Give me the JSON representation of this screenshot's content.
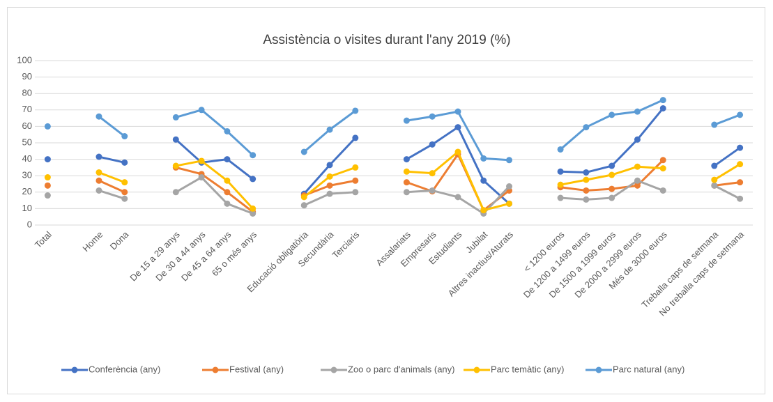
{
  "chart_data": {
    "type": "line",
    "title": "Assistència o visites durant l'any 2019 (%)",
    "categories": [
      "Total",
      null,
      "Home",
      "Dona",
      null,
      "De 15 a 29 anys",
      "De 30 a 44 anys",
      "De 45 a 64 anys",
      "65 o més anys",
      null,
      "Educació obligatòria",
      "Secundària",
      "Terciaris",
      null,
      "Assalariats",
      "Empresaris",
      "Estudiants",
      "Jubilat",
      "Altres inactius/Aturats",
      null,
      "< 1200 euros",
      "De 1200 a 1499 euros",
      "De 1500 a 1999 euros",
      "De 2000 a 2999 euros",
      "Més de 3000 euros",
      null,
      "Treballa caps de setmana",
      "No treballa caps de setmana"
    ],
    "series": [
      {
        "name": "Conferència (any)",
        "color": "#4472c4",
        "values": [
          40,
          null,
          41.5,
          38,
          null,
          52,
          38,
          40,
          28,
          null,
          19,
          36.5,
          53,
          null,
          40,
          49,
          59.5,
          27,
          13,
          null,
          32.5,
          32,
          36,
          52,
          71,
          null,
          36,
          47
        ]
      },
      {
        "name": "Festival (any)",
        "color": "#ed7d31",
        "values": [
          24,
          null,
          27,
          20,
          null,
          35,
          31,
          20,
          8,
          null,
          18,
          24,
          27,
          null,
          26,
          20.5,
          43,
          9,
          21,
          null,
          23,
          21,
          22,
          24,
          39.5,
          null,
          24,
          26
        ]
      },
      {
        "name": "Zoo o parc d'animals (any)",
        "color": "#a5a5a5",
        "values": [
          18,
          null,
          21,
          16,
          null,
          20,
          29,
          13,
          7,
          null,
          12,
          19,
          20,
          null,
          20,
          21,
          17,
          7,
          23.5,
          null,
          16.5,
          15.5,
          16.5,
          27,
          21,
          null,
          24,
          16
        ]
      },
      {
        "name": "Parc temàtic (any)",
        "color": "#ffc000",
        "values": [
          29,
          null,
          32,
          26,
          null,
          36,
          39,
          27,
          10,
          null,
          17,
          29.5,
          35,
          null,
          32.5,
          31.5,
          44.5,
          9,
          13,
          null,
          24.5,
          27.5,
          30.5,
          35.5,
          34.5,
          null,
          27.5,
          37
        ]
      },
      {
        "name": "Parc natural (any)",
        "color": "#5b9bd5",
        "values": [
          60,
          null,
          66,
          54,
          null,
          65.5,
          70,
          57,
          42.5,
          null,
          44.5,
          58,
          69.5,
          null,
          63.5,
          66,
          69,
          40.5,
          39.5,
          null,
          46,
          59.5,
          67,
          69,
          76,
          null,
          61,
          67
        ]
      }
    ],
    "ylim": [
      0,
      100
    ],
    "yticks": [
      0,
      10,
      20,
      30,
      40,
      50,
      60,
      70,
      80,
      90,
      100
    ],
    "grid": true,
    "legend": "bottom"
  }
}
